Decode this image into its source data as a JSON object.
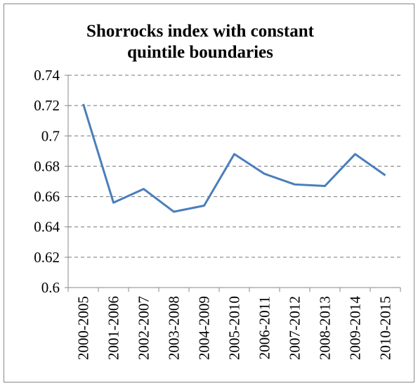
{
  "chart_data": {
    "type": "line",
    "title": "Shorrocks index with constant quintile boundaries",
    "categories": [
      "2000-2005",
      "2001-2006",
      "2002-2007",
      "2003-2008",
      "2004-2009",
      "2005-2010",
      "2006-2011",
      "2007-2012",
      "2008-2013",
      "2009-2014",
      "2010-2015"
    ],
    "series": [
      {
        "name": "Shorrocks index",
        "color": "#4a7ebb",
        "values": [
          0.721,
          0.656,
          0.665,
          0.65,
          0.654,
          0.688,
          0.675,
          0.668,
          0.667,
          0.688,
          0.674
        ]
      }
    ],
    "ylim": [
      0.6,
      0.74
    ],
    "yticks": [
      0.6,
      0.62,
      0.64,
      0.66,
      0.68,
      0.7,
      0.72,
      0.74
    ],
    "grid": true
  }
}
